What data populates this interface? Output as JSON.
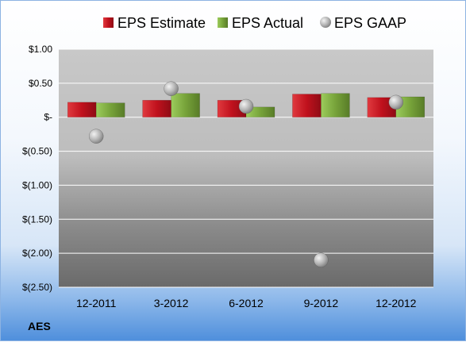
{
  "ticker": "AES",
  "chart_data": {
    "type": "bar",
    "categories": [
      "12-2011",
      "3-2012",
      "6-2012",
      "9-2012",
      "12-2012"
    ],
    "series": [
      {
        "name": "EPS Estimate",
        "kind": "bar",
        "color": "#c0111d",
        "values": [
          0.22,
          0.25,
          0.25,
          0.34,
          0.29
        ]
      },
      {
        "name": "EPS Actual",
        "kind": "bar",
        "color": "#77a33a",
        "values": [
          0.21,
          0.35,
          0.15,
          0.35,
          0.3
        ]
      },
      {
        "name": "EPS GAAP",
        "kind": "scatter",
        "color": "#a6a6a6",
        "values": [
          -0.28,
          0.42,
          0.16,
          -2.1,
          0.22
        ]
      }
    ],
    "yticks": [
      1.0,
      0.5,
      0,
      -0.5,
      -1.0,
      -1.5,
      -2.0,
      -2.5
    ],
    "ytick_labels": [
      "$1.00",
      "$0.50",
      "$-",
      "$(0.50)",
      "$(1.00)",
      "$(1.50)",
      "$(2.00)",
      "$(2.50)"
    ],
    "ylim": [
      -2.5,
      1.0
    ],
    "grid": true,
    "legend_position": "top"
  }
}
